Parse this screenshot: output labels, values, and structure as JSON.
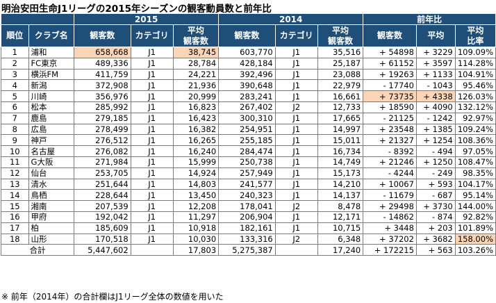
{
  "title": "明治安田生命J1リーグの2015年シーズンの観客動員数と前年比",
  "header": {
    "group_2015": "2015",
    "group_2014": "2014",
    "group_diff": "前年比",
    "rank": "順位",
    "club": "クラブ名",
    "att_2015": "観客数",
    "cat_2015": "カテゴリ",
    "avg_2015": "平均\n観客数",
    "att_2014": "観客数",
    "cat_2014": "カテゴリ",
    "avg_2014": "平均\n観客数",
    "diff_att": "観客数",
    "diff_avg": "平均",
    "diff_ratio": "平均\n比率"
  },
  "rows": [
    {
      "rank": "1",
      "club": "浦和",
      "att15": "658,668",
      "cat15": "J1",
      "avg15": "38,745",
      "att14": "603,770",
      "cat14": "J1",
      "avg14": "35,516",
      "dAtt": "+ 54898",
      "dAvg": "+ 3229",
      "ratio": "109.09%"
    },
    {
      "rank": "2",
      "club": "FC東京",
      "att15": "489,336",
      "cat15": "J1",
      "avg15": "28,784",
      "att14": "428,184",
      "cat14": "J1",
      "avg14": "25,187",
      "dAtt": "+ 61152",
      "dAvg": "+ 3597",
      "ratio": "114.28%"
    },
    {
      "rank": "3",
      "club": "横浜FM",
      "att15": "411,759",
      "cat15": "J1",
      "avg15": "24,221",
      "att14": "392,496",
      "cat14": "J1",
      "avg14": "23,088",
      "dAtt": "+ 19263",
      "dAvg": "+ 1133",
      "ratio": "104.91%"
    },
    {
      "rank": "4",
      "club": "新潟",
      "att15": "372,908",
      "cat15": "J1",
      "avg15": "21,936",
      "att14": "390,648",
      "cat14": "J1",
      "avg14": "22,979",
      "dAtt": "- 17740",
      "dAvg": "- 1043",
      "ratio": "95.46%"
    },
    {
      "rank": "5",
      "club": "川崎",
      "att15": "356,976",
      "cat15": "J1",
      "avg15": "20,999",
      "att14": "283,241",
      "cat14": "J1",
      "avg14": "16,661",
      "dAtt": "+ 73735",
      "dAvg": "+ 4338",
      "ratio": "126.03%"
    },
    {
      "rank": "6",
      "club": "松本",
      "att15": "285,992",
      "cat15": "J1",
      "avg15": "16,823",
      "att14": "267,402",
      "cat14": "J2",
      "avg14": "12,733",
      "dAtt": "+ 18590",
      "dAvg": "+ 4090",
      "ratio": "132.12%"
    },
    {
      "rank": "7",
      "club": "鹿島",
      "att15": "279,185",
      "cat15": "J1",
      "avg15": "16,423",
      "att14": "300,310",
      "cat14": "J1",
      "avg14": "17,665",
      "dAtt": "- 21125",
      "dAvg": "- 1242",
      "ratio": "92.97%"
    },
    {
      "rank": "8",
      "club": "広島",
      "att15": "278,499",
      "cat15": "J1",
      "avg15": "16,382",
      "att14": "254,951",
      "cat14": "J1",
      "avg14": "14,997",
      "dAtt": "+ 23548",
      "dAvg": "+ 1385",
      "ratio": "109.24%"
    },
    {
      "rank": "9",
      "club": "神戸",
      "att15": "276,512",
      "cat15": "J1",
      "avg15": "16,265",
      "att14": "255,185",
      "cat14": "J1",
      "avg14": "15,011",
      "dAtt": "+ 21327",
      "dAvg": "+ 1254",
      "ratio": "108.36%"
    },
    {
      "rank": "10",
      "club": "名古屋",
      "att15": "276,082",
      "cat15": "J1",
      "avg15": "16,240",
      "att14": "284,474",
      "cat14": "J1",
      "avg14": "16,734",
      "dAtt": "- 8392",
      "dAvg": "- 494",
      "ratio": "97.05%"
    },
    {
      "rank": "11",
      "club": "G大阪",
      "att15": "271,984",
      "cat15": "J1",
      "avg15": "15,999",
      "att14": "250,738",
      "cat14": "J1",
      "avg14": "14,749",
      "dAtt": "+ 21246",
      "dAvg": "+ 1250",
      "ratio": "108.47%"
    },
    {
      "rank": "12",
      "club": "仙台",
      "att15": "253,705",
      "cat15": "J1",
      "avg15": "14,924",
      "att14": "257,949",
      "cat14": "J1",
      "avg14": "15,173",
      "dAtt": "- 4244",
      "dAvg": "- 249",
      "ratio": "98.35%"
    },
    {
      "rank": "13",
      "club": "清水",
      "att15": "251,644",
      "cat15": "J1",
      "avg15": "14,803",
      "att14": "241,577",
      "cat14": "J1",
      "avg14": "14,210",
      "dAtt": "+ 10067",
      "dAvg": "+ 593",
      "ratio": "104.17%"
    },
    {
      "rank": "14",
      "club": "鳥栖",
      "att15": "228,644",
      "cat15": "J1",
      "avg15": "13,450",
      "att14": "240,323",
      "cat14": "J1",
      "avg14": "14,137",
      "dAtt": "- 11679",
      "dAvg": "- 687",
      "ratio": "95.14%"
    },
    {
      "rank": "15",
      "club": "湘南",
      "att15": "207,539",
      "cat15": "J1",
      "avg15": "12,208",
      "att14": "178,041",
      "cat14": "J2",
      "avg14": "8,478",
      "dAtt": "+ 29498",
      "dAvg": "+ 3730",
      "ratio": "144.00%"
    },
    {
      "rank": "16",
      "club": "甲府",
      "att15": "192,042",
      "cat15": "J1",
      "avg15": "11,297",
      "att14": "206,904",
      "cat14": "J1",
      "avg14": "12,171",
      "dAtt": "- 14862",
      "dAvg": "- 874",
      "ratio": "92.82%"
    },
    {
      "rank": "17",
      "club": "柏",
      "att15": "185,609",
      "cat15": "J1",
      "avg15": "10,918",
      "att14": "182,161",
      "cat14": "J1",
      "avg14": "10,715",
      "dAtt": "+ 3448",
      "dAvg": "+ 203",
      "ratio": "101.89%"
    },
    {
      "rank": "18",
      "club": "山形",
      "att15": "170,518",
      "cat15": "J1",
      "avg15": "10,030",
      "att14": "133,316",
      "cat14": "J2",
      "avg14": "6,348",
      "dAtt": "+ 37202",
      "dAvg": "+ 3682",
      "ratio": "158.00%"
    }
  ],
  "total": {
    "label": "合計",
    "att15": "5,447,602",
    "avg15": "17,803",
    "att14": "5,275,387",
    "avg14": "17,240",
    "dAtt": "+ 172215",
    "dAvg": "+ 563",
    "ratio": "103.26%"
  },
  "note": "※ 前年（2014年）の合計欄はJ1リーグ全体の数値を用いた",
  "highlight_color": "#fbd5b5",
  "header_color": "#1f4e79"
}
